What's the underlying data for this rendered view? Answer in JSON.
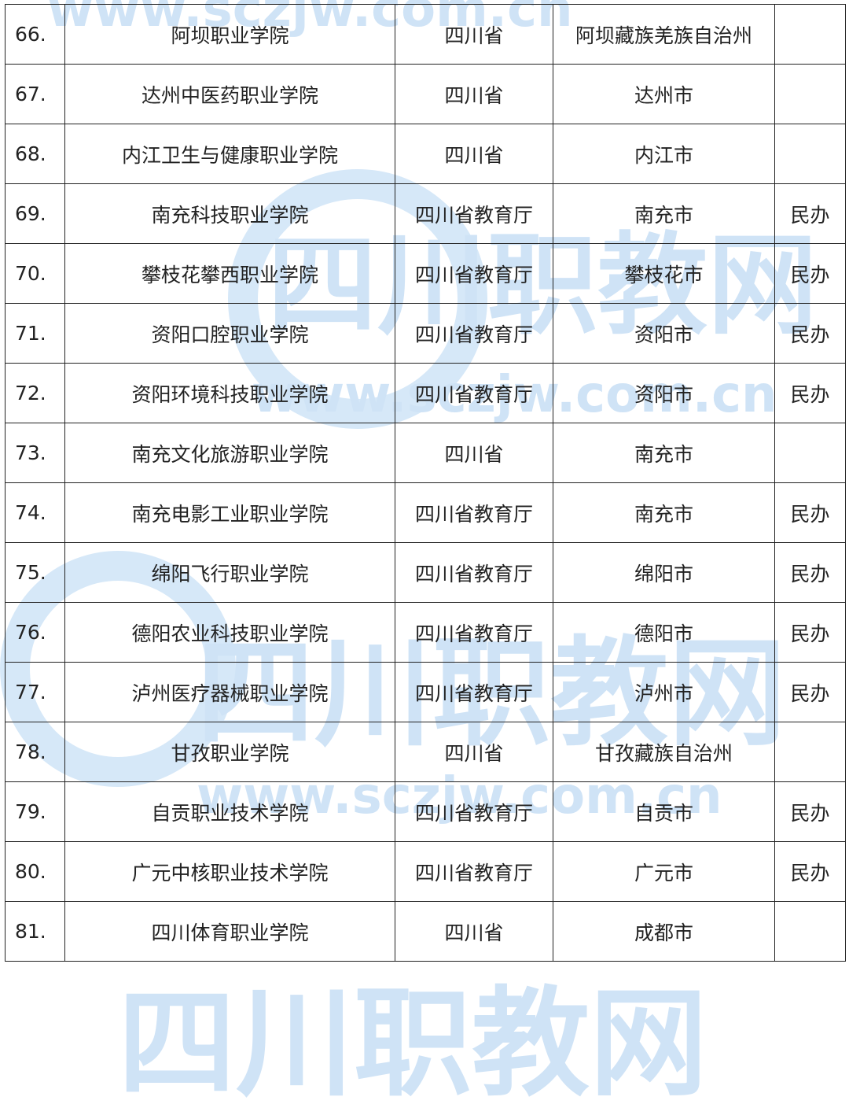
{
  "watermark": {
    "url": "www.sczjw.com.cn",
    "name": "四川职教网",
    "color": "#cfe3f6"
  },
  "rows": [
    {
      "no": "66.",
      "name": "阿坝职业学院",
      "authority": "四川省",
      "city": "阿坝藏族羌族自治州",
      "type": ""
    },
    {
      "no": "67.",
      "name": "达州中医药职业学院",
      "authority": "四川省",
      "city": "达州市",
      "type": ""
    },
    {
      "no": "68.",
      "name": "内江卫生与健康职业学院",
      "authority": "四川省",
      "city": "内江市",
      "type": ""
    },
    {
      "no": "69.",
      "name": "南充科技职业学院",
      "authority": "四川省教育厅",
      "city": "南充市",
      "type": "民办"
    },
    {
      "no": "70.",
      "name": "攀枝花攀西职业学院",
      "authority": "四川省教育厅",
      "city": "攀枝花市",
      "type": "民办"
    },
    {
      "no": "71.",
      "name": "资阳口腔职业学院",
      "authority": "四川省教育厅",
      "city": "资阳市",
      "type": "民办"
    },
    {
      "no": "72.",
      "name": "资阳环境科技职业学院",
      "authority": "四川省教育厅",
      "city": "资阳市",
      "type": "民办"
    },
    {
      "no": "73.",
      "name": "南充文化旅游职业学院",
      "authority": "四川省",
      "city": "南充市",
      "type": ""
    },
    {
      "no": "74.",
      "name": "南充电影工业职业学院",
      "authority": "四川省教育厅",
      "city": "南充市",
      "type": "民办"
    },
    {
      "no": "75.",
      "name": "绵阳飞行职业学院",
      "authority": "四川省教育厅",
      "city": "绵阳市",
      "type": "民办"
    },
    {
      "no": "76.",
      "name": "德阳农业科技职业学院",
      "authority": "四川省教育厅",
      "city": "德阳市",
      "type": "民办"
    },
    {
      "no": "77.",
      "name": "泸州医疗器械职业学院",
      "authority": "四川省教育厅",
      "city": "泸州市",
      "type": "民办"
    },
    {
      "no": "78.",
      "name": "甘孜职业学院",
      "authority": "四川省",
      "city": "甘孜藏族自治州",
      "type": ""
    },
    {
      "no": "79.",
      "name": "自贡职业技术学院",
      "authority": "四川省教育厅",
      "city": "自贡市",
      "type": "民办"
    },
    {
      "no": "80.",
      "name": "广元中核职业技术学院",
      "authority": "四川省教育厅",
      "city": "广元市",
      "type": "民办"
    },
    {
      "no": "81.",
      "name": "四川体育职业学院",
      "authority": "四川省",
      "city": "成都市",
      "type": ""
    }
  ]
}
